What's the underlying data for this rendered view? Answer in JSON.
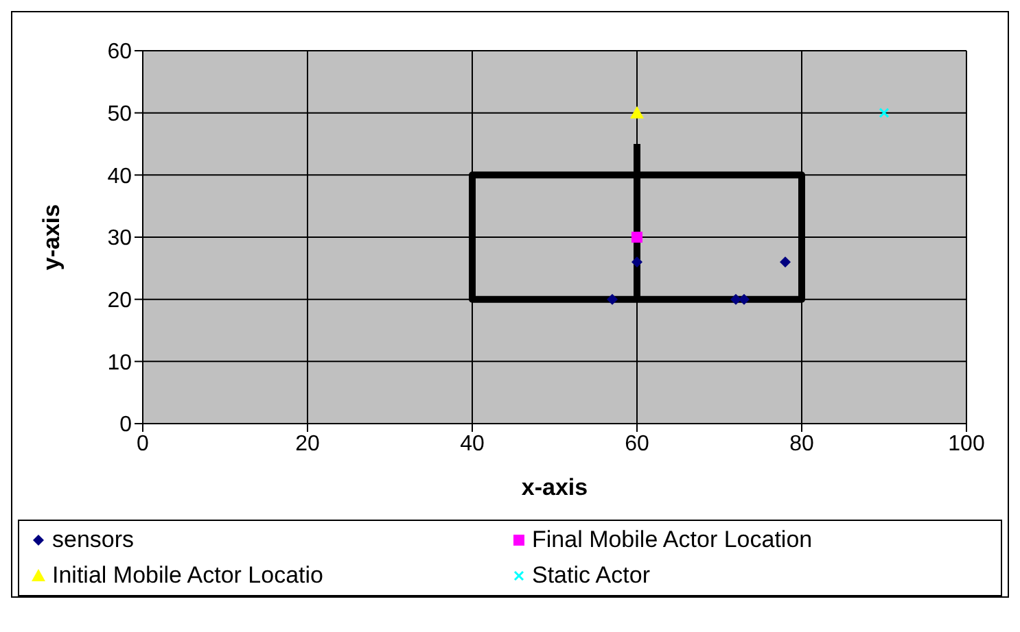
{
  "chart_data": {
    "type": "scatter",
    "xlabel": "x-axis",
    "ylabel": "y-axis",
    "xlim": [
      0,
      100
    ],
    "xticks": [
      0,
      20,
      40,
      60,
      80,
      100
    ],
    "ylim": [
      0,
      60
    ],
    "yticks": [
      0,
      10,
      20,
      30,
      40,
      50,
      60
    ],
    "grid": true,
    "legend": "bottom",
    "series": [
      {
        "name": "sensors",
        "color": "#000080",
        "marker": "diamond",
        "x": [
          57,
          60,
          72,
          73,
          78
        ],
        "values": [
          20,
          26,
          20,
          20,
          26
        ]
      },
      {
        "name": "Final Mobile Actor Location",
        "color": "#ff00ff",
        "marker": "square",
        "x": [
          60
        ],
        "values": [
          30
        ]
      },
      {
        "name": "Initial Mobile Actor Locatio",
        "color": "#ffff00",
        "marker": "triangle",
        "x": [
          60
        ],
        "values": [
          50
        ]
      },
      {
        "name": "Static Actor",
        "color": "#00ffff",
        "marker": "cross",
        "x": [
          90
        ],
        "values": [
          50
        ]
      },
      {
        "type": "line",
        "color": "#000000",
        "marker": "none",
        "x": [
          60,
          60,
          40,
          40,
          80,
          80,
          60
        ],
        "values": [
          45,
          20,
          20,
          40,
          40,
          20,
          20
        ]
      }
    ]
  }
}
